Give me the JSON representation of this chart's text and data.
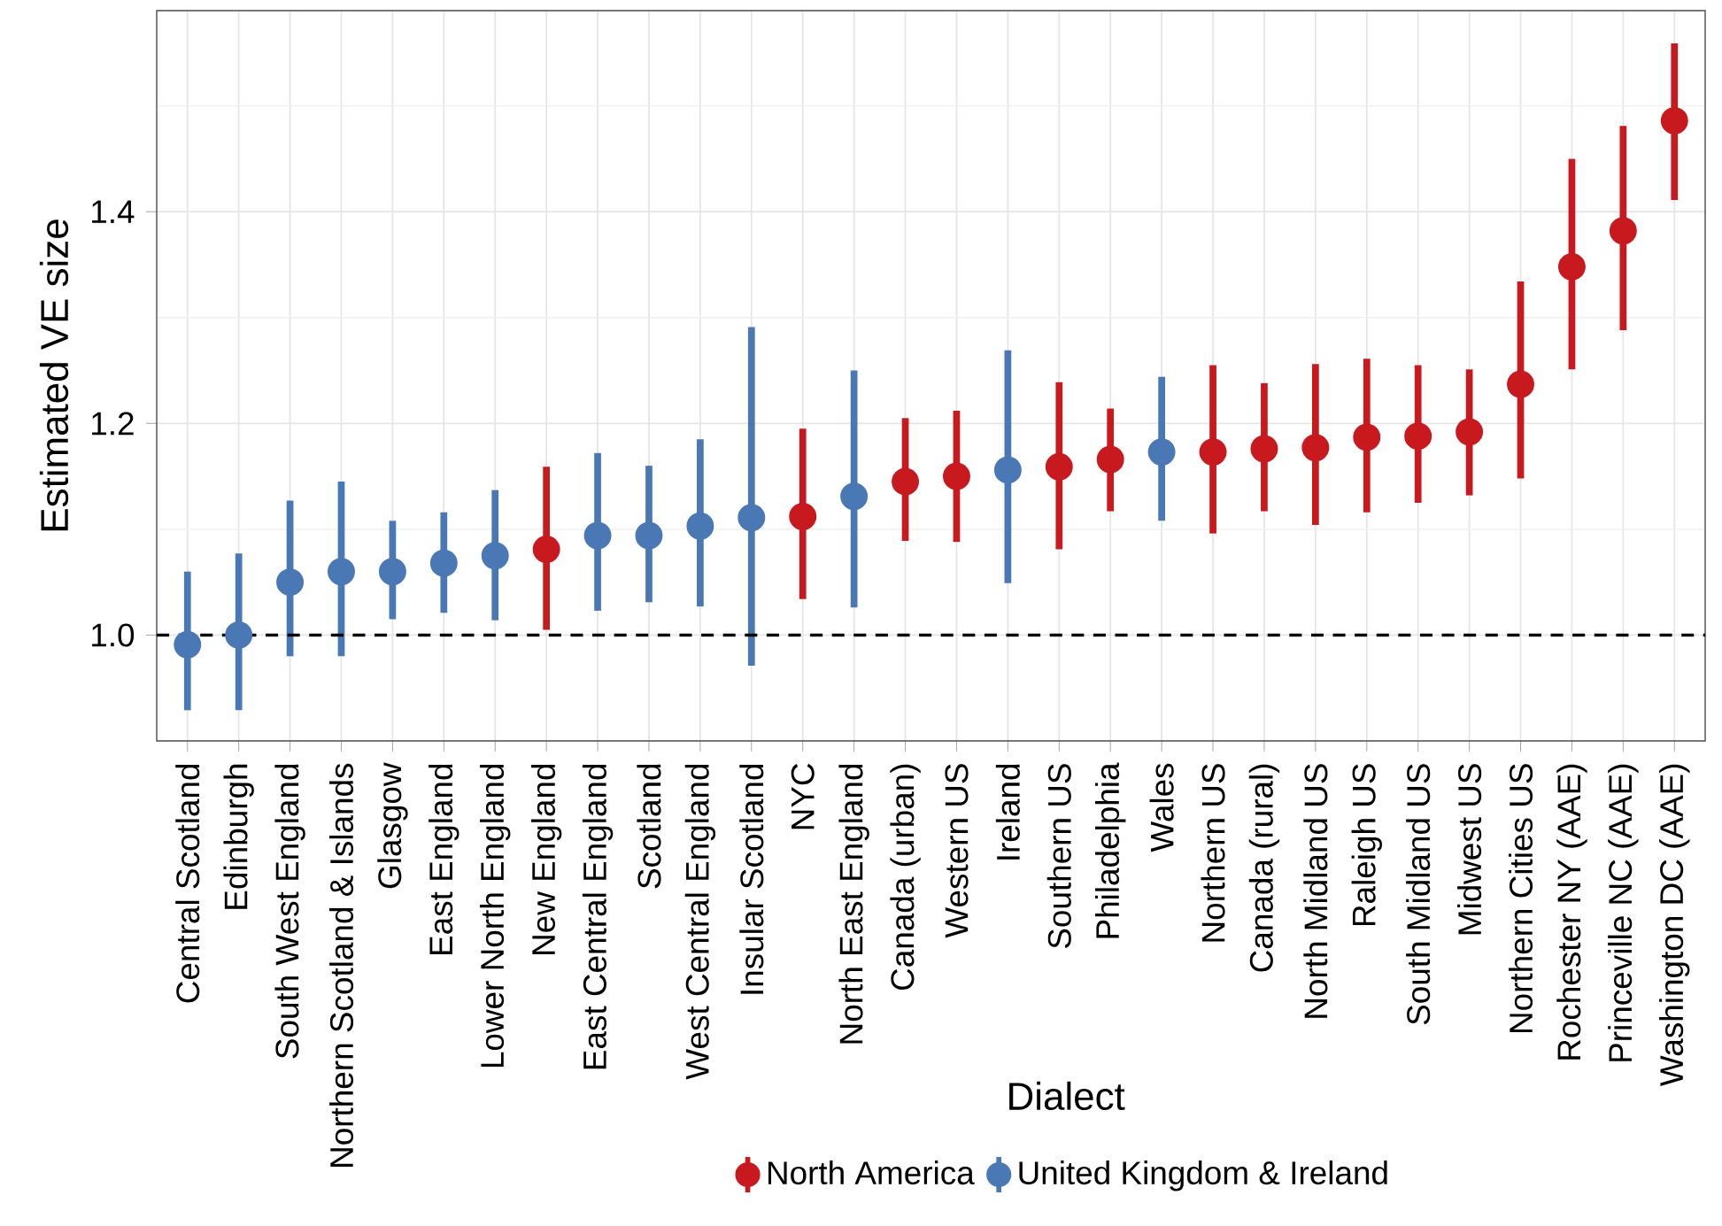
{
  "chart_data": {
    "type": "scatter",
    "xlabel": "Dialect",
    "ylabel": "Estimated VE size",
    "categories": [
      "Central Scotland",
      "Edinburgh",
      "South West England",
      "Northern Scotland & Islands",
      "Glasgow",
      "East England",
      "Lower North England",
      "New England",
      "East Central England",
      "Scotland",
      "West Central England",
      "Insular Scotland",
      "NYC",
      "North East England",
      "Canada (urban)",
      "Western US",
      "Ireland",
      "Southern US",
      "Philadelphia",
      "Wales",
      "Northern US",
      "Canada (rural)",
      "North Midland US",
      "Raleigh US",
      "South Midland US",
      "Midwest US",
      "Northern Cities US",
      "Rochester NY (AAE)",
      "Princeville NC (AAE)",
      "Washington DC (AAE)"
    ],
    "series": [
      {
        "name": "North America",
        "color": "#c8191e",
        "values": [
          null,
          null,
          null,
          null,
          null,
          null,
          null,
          1.081,
          null,
          null,
          null,
          null,
          1.112,
          null,
          1.145,
          1.15,
          null,
          1.159,
          1.166,
          null,
          1.173,
          1.176,
          1.177,
          1.187,
          1.188,
          1.192,
          1.237,
          1.348,
          1.382,
          1.486
        ],
        "errors": [
          null,
          null,
          null,
          null,
          null,
          null,
          null,
          [
            1.005,
            1.159
          ],
          null,
          null,
          null,
          null,
          [
            1.034,
            1.195
          ],
          null,
          [
            1.089,
            1.205
          ],
          [
            1.088,
            1.212
          ],
          null,
          [
            1.081,
            1.239
          ],
          [
            1.117,
            1.214
          ],
          null,
          [
            1.096,
            1.255
          ],
          [
            1.117,
            1.238
          ],
          [
            1.104,
            1.256
          ],
          [
            1.116,
            1.261
          ],
          [
            1.125,
            1.255
          ],
          [
            1.132,
            1.251
          ],
          [
            1.148,
            1.334
          ],
          [
            1.251,
            1.45
          ],
          [
            1.288,
            1.481
          ],
          [
            1.411,
            1.559
          ]
        ]
      },
      {
        "name": "United Kingdom & Ireland",
        "color": "#4a78b5",
        "values": [
          0.991,
          1.0,
          1.05,
          1.06,
          1.06,
          1.068,
          1.075,
          null,
          1.094,
          1.094,
          1.103,
          1.111,
          null,
          1.131,
          null,
          null,
          1.156,
          null,
          null,
          1.173,
          null,
          null,
          null,
          null,
          null,
          null,
          null,
          null,
          null,
          null
        ],
        "errors": [
          [
            0.929,
            1.06
          ],
          [
            0.929,
            1.077
          ],
          [
            0.98,
            1.127
          ],
          [
            0.98,
            1.145
          ],
          [
            1.015,
            1.108
          ],
          [
            1.021,
            1.116
          ],
          [
            1.014,
            1.137
          ],
          null,
          [
            1.023,
            1.172
          ],
          [
            1.031,
            1.16
          ],
          [
            1.027,
            1.185
          ],
          [
            0.971,
            1.291
          ],
          null,
          [
            1.026,
            1.25
          ],
          null,
          null,
          [
            1.049,
            1.269
          ],
          null,
          null,
          [
            1.108,
            1.244
          ],
          null,
          null,
          null,
          null,
          null,
          null,
          null,
          null,
          null,
          null
        ]
      }
    ],
    "ylim": [
      0.9,
      1.59
    ],
    "yticks": [
      {
        "value": 1.0,
        "label": "1.0"
      },
      {
        "value": 1.1,
        "label": null
      },
      1.2,
      {
        "value": 1.3,
        "label": null
      },
      1.4,
      {
        "value": 1.5,
        "label": null
      }
    ],
    "grid": true,
    "legend": "bottom",
    "marker": "circle",
    "ref_lines": [
      {
        "axis": "y",
        "value": 1.0,
        "line_style": "dashed"
      }
    ]
  }
}
